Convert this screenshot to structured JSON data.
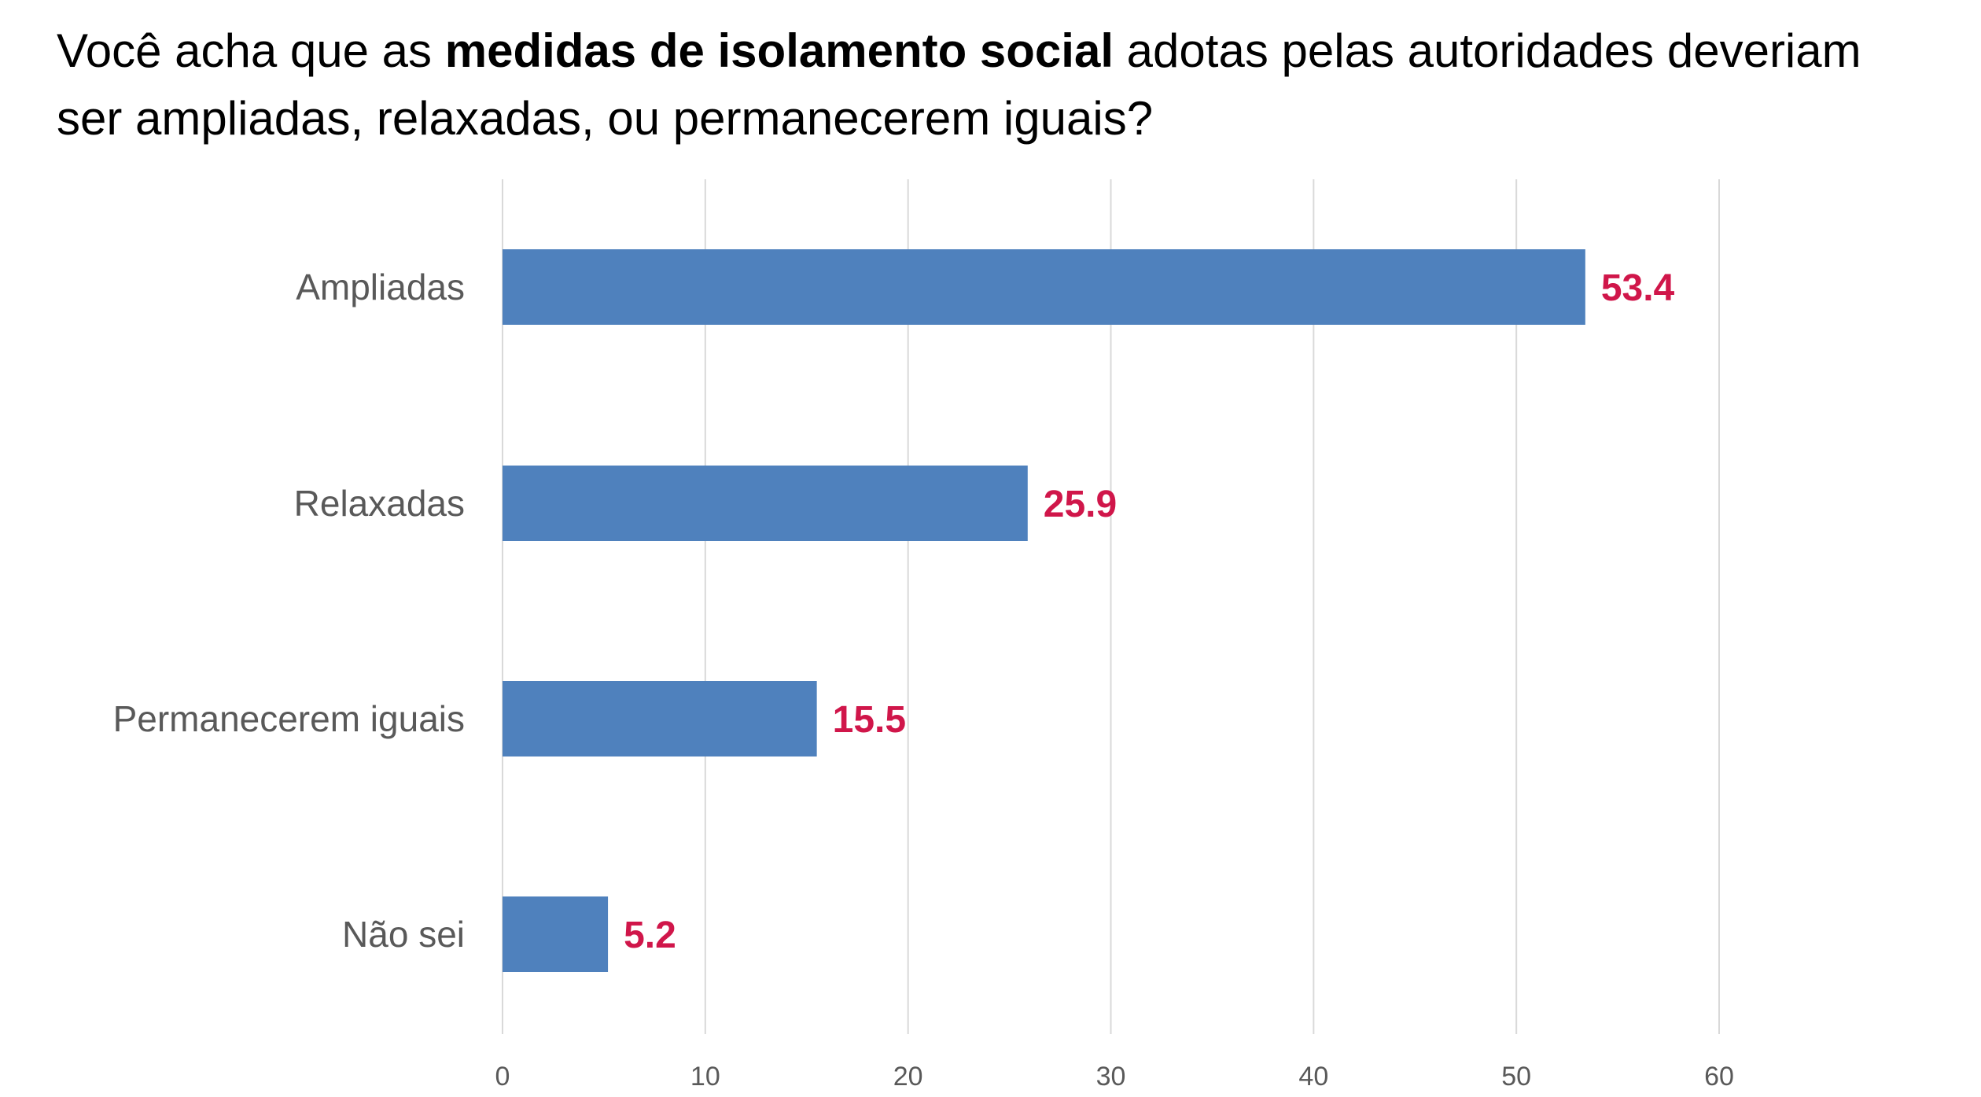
{
  "title": {
    "prefix": "Você acha que as ",
    "emphasis": "medidas de isolamento social",
    "suffix": " adotas pelas autoridades deveriam ser ampliadas, relaxadas, ou permanecerem iguais?"
  },
  "chart_data": {
    "type": "bar",
    "orientation": "horizontal",
    "title": "Você acha que as medidas de isolamento social adotas pelas autoridades deveriam ser ampliadas, relaxadas, ou permanecerem iguais?",
    "categories": [
      "Ampliadas",
      "Relaxadas",
      "Permanecerem iguais",
      "Não sei"
    ],
    "values": [
      53.4,
      25.9,
      15.5,
      5.2
    ],
    "value_labels": [
      "53.4",
      "25.9",
      "15.5",
      "5.2"
    ],
    "xlim": [
      0,
      60
    ],
    "xticks": [
      0,
      10,
      20,
      30,
      40,
      50,
      60
    ],
    "xtick_labels": [
      "0",
      "10",
      "20",
      "30",
      "40",
      "50",
      "60"
    ],
    "xlabel": "",
    "ylabel": "",
    "grid": true,
    "legend": "none",
    "colors": {
      "bar": "#4f81bd",
      "value_label": "#d0164a",
      "category_label": "#595959",
      "gridline": "#d9d9d9"
    }
  }
}
